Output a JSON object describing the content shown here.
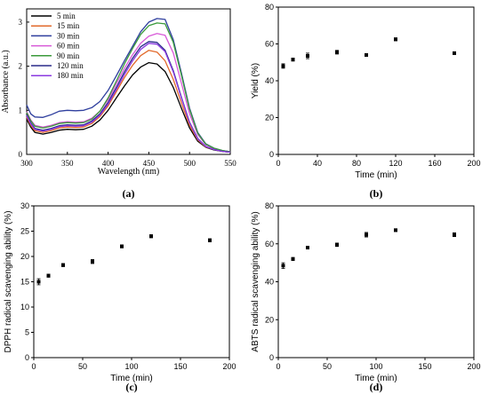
{
  "chart_data": [
    {
      "panel_label": "(a)",
      "type": "line",
      "xlabel": "Wavelength (nm)",
      "ylabel": "Absorbance (a.u.)",
      "xlim": [
        300,
        550
      ],
      "ylim": [
        0,
        3.3
      ],
      "xticks": [
        300,
        350,
        400,
        450,
        500,
        550
      ],
      "yticks": [
        0,
        1,
        2,
        3
      ],
      "grid": false,
      "legend_position": "top-left",
      "x": [
        300,
        305,
        310,
        320,
        330,
        340,
        350,
        360,
        370,
        380,
        390,
        400,
        410,
        420,
        430,
        440,
        450,
        460,
        470,
        480,
        490,
        500,
        510,
        520,
        530,
        540,
        550
      ],
      "series": [
        {
          "name": "5 min",
          "color": "#000000",
          "values": [
            0.8,
            0.62,
            0.5,
            0.46,
            0.5,
            0.55,
            0.57,
            0.56,
            0.57,
            0.64,
            0.78,
            1.0,
            1.28,
            1.55,
            1.8,
            1.98,
            2.08,
            2.05,
            1.88,
            1.52,
            1.05,
            0.6,
            0.3,
            0.16,
            0.1,
            0.07,
            0.05
          ]
        },
        {
          "name": "15 min",
          "color": "#e26a2c",
          "values": [
            0.85,
            0.66,
            0.54,
            0.5,
            0.54,
            0.6,
            0.62,
            0.61,
            0.62,
            0.7,
            0.86,
            1.1,
            1.42,
            1.74,
            2.02,
            2.24,
            2.36,
            2.32,
            2.12,
            1.7,
            1.17,
            0.66,
            0.33,
            0.17,
            0.11,
            0.07,
            0.05
          ]
        },
        {
          "name": "30 min",
          "color": "#2f3f9e",
          "values": [
            1.12,
            0.92,
            0.85,
            0.84,
            0.9,
            0.98,
            1.0,
            0.99,
            1.0,
            1.06,
            1.2,
            1.45,
            1.78,
            2.12,
            2.45,
            2.78,
            3.0,
            3.08,
            3.06,
            2.6,
            1.85,
            1.05,
            0.5,
            0.24,
            0.14,
            0.09,
            0.06
          ]
        },
        {
          "name": "60 min",
          "color": "#d85ad8",
          "values": [
            0.97,
            0.78,
            0.66,
            0.62,
            0.66,
            0.72,
            0.74,
            0.73,
            0.74,
            0.82,
            0.98,
            1.24,
            1.6,
            1.95,
            2.26,
            2.52,
            2.68,
            2.74,
            2.7,
            2.3,
            1.62,
            0.92,
            0.45,
            0.22,
            0.13,
            0.08,
            0.06
          ]
        },
        {
          "name": "90 min",
          "color": "#3a9a3a",
          "values": [
            0.95,
            0.76,
            0.64,
            0.6,
            0.64,
            0.7,
            0.72,
            0.71,
            0.72,
            0.8,
            0.98,
            1.28,
            1.66,
            2.05,
            2.4,
            2.72,
            2.92,
            2.98,
            2.96,
            2.54,
            1.8,
            1.02,
            0.48,
            0.23,
            0.14,
            0.09,
            0.06
          ]
        },
        {
          "name": "120 min",
          "color": "#2a2a8a",
          "values": [
            0.9,
            0.71,
            0.59,
            0.55,
            0.59,
            0.65,
            0.67,
            0.66,
            0.67,
            0.76,
            0.92,
            1.18,
            1.52,
            1.87,
            2.18,
            2.44,
            2.56,
            2.54,
            2.36,
            1.9,
            1.3,
            0.73,
            0.36,
            0.18,
            0.11,
            0.07,
            0.05
          ]
        },
        {
          "name": "180 min",
          "color": "#8a3ae0",
          "values": [
            0.88,
            0.69,
            0.57,
            0.53,
            0.57,
            0.63,
            0.65,
            0.64,
            0.65,
            0.73,
            0.89,
            1.14,
            1.47,
            1.81,
            2.12,
            2.38,
            2.52,
            2.5,
            2.33,
            1.87,
            1.28,
            0.72,
            0.35,
            0.18,
            0.11,
            0.07,
            0.05
          ]
        }
      ]
    },
    {
      "panel_label": "(b)",
      "type": "scatter",
      "xlabel": "Time (min)",
      "ylabel": "Yield (%)",
      "xlim": [
        0,
        200
      ],
      "ylim": [
        0,
        80
      ],
      "xticks": [
        0,
        40,
        80,
        120,
        160,
        200
      ],
      "yticks": [
        0,
        20,
        40,
        60,
        80
      ],
      "grid": false,
      "x": [
        5,
        15,
        30,
        60,
        90,
        120,
        180
      ],
      "values": [
        48,
        51.5,
        53.5,
        55.5,
        54,
        62.5,
        55
      ],
      "errors": [
        1.2,
        0.8,
        1.5,
        1.0,
        0.7,
        0.8,
        0.7
      ]
    },
    {
      "panel_label": "(c)",
      "type": "scatter",
      "xlabel": "Time (min)",
      "ylabel": "DPPH radical scavenging ability (%)",
      "xlim": [
        0,
        200
      ],
      "ylim": [
        0,
        30
      ],
      "xticks": [
        0,
        50,
        100,
        150,
        200
      ],
      "yticks": [
        0,
        5,
        10,
        15,
        20,
        25,
        30
      ],
      "grid": false,
      "x": [
        5,
        15,
        30,
        60,
        90,
        120,
        180
      ],
      "values": [
        15.0,
        16.2,
        18.3,
        19.0,
        22.0,
        24.0,
        23.2
      ],
      "errors": [
        0.6,
        0.3,
        0.3,
        0.4,
        0.3,
        0.3,
        0.3
      ]
    },
    {
      "panel_label": "(d)",
      "type": "scatter",
      "xlabel": "Time (min)",
      "ylabel": "ABTS radical scavenging ability (%)",
      "xlim": [
        0,
        200
      ],
      "ylim": [
        0,
        80
      ],
      "xticks": [
        0,
        50,
        100,
        150,
        200
      ],
      "yticks": [
        0,
        20,
        40,
        60,
        80
      ],
      "grid": false,
      "x": [
        5,
        15,
        30,
        60,
        90,
        120,
        180
      ],
      "values": [
        48.5,
        52.0,
        58.0,
        59.5,
        64.8,
        67.2,
        64.8
      ],
      "errors": [
        1.5,
        0.8,
        0.7,
        0.9,
        1.2,
        0.7,
        1.0
      ]
    }
  ]
}
